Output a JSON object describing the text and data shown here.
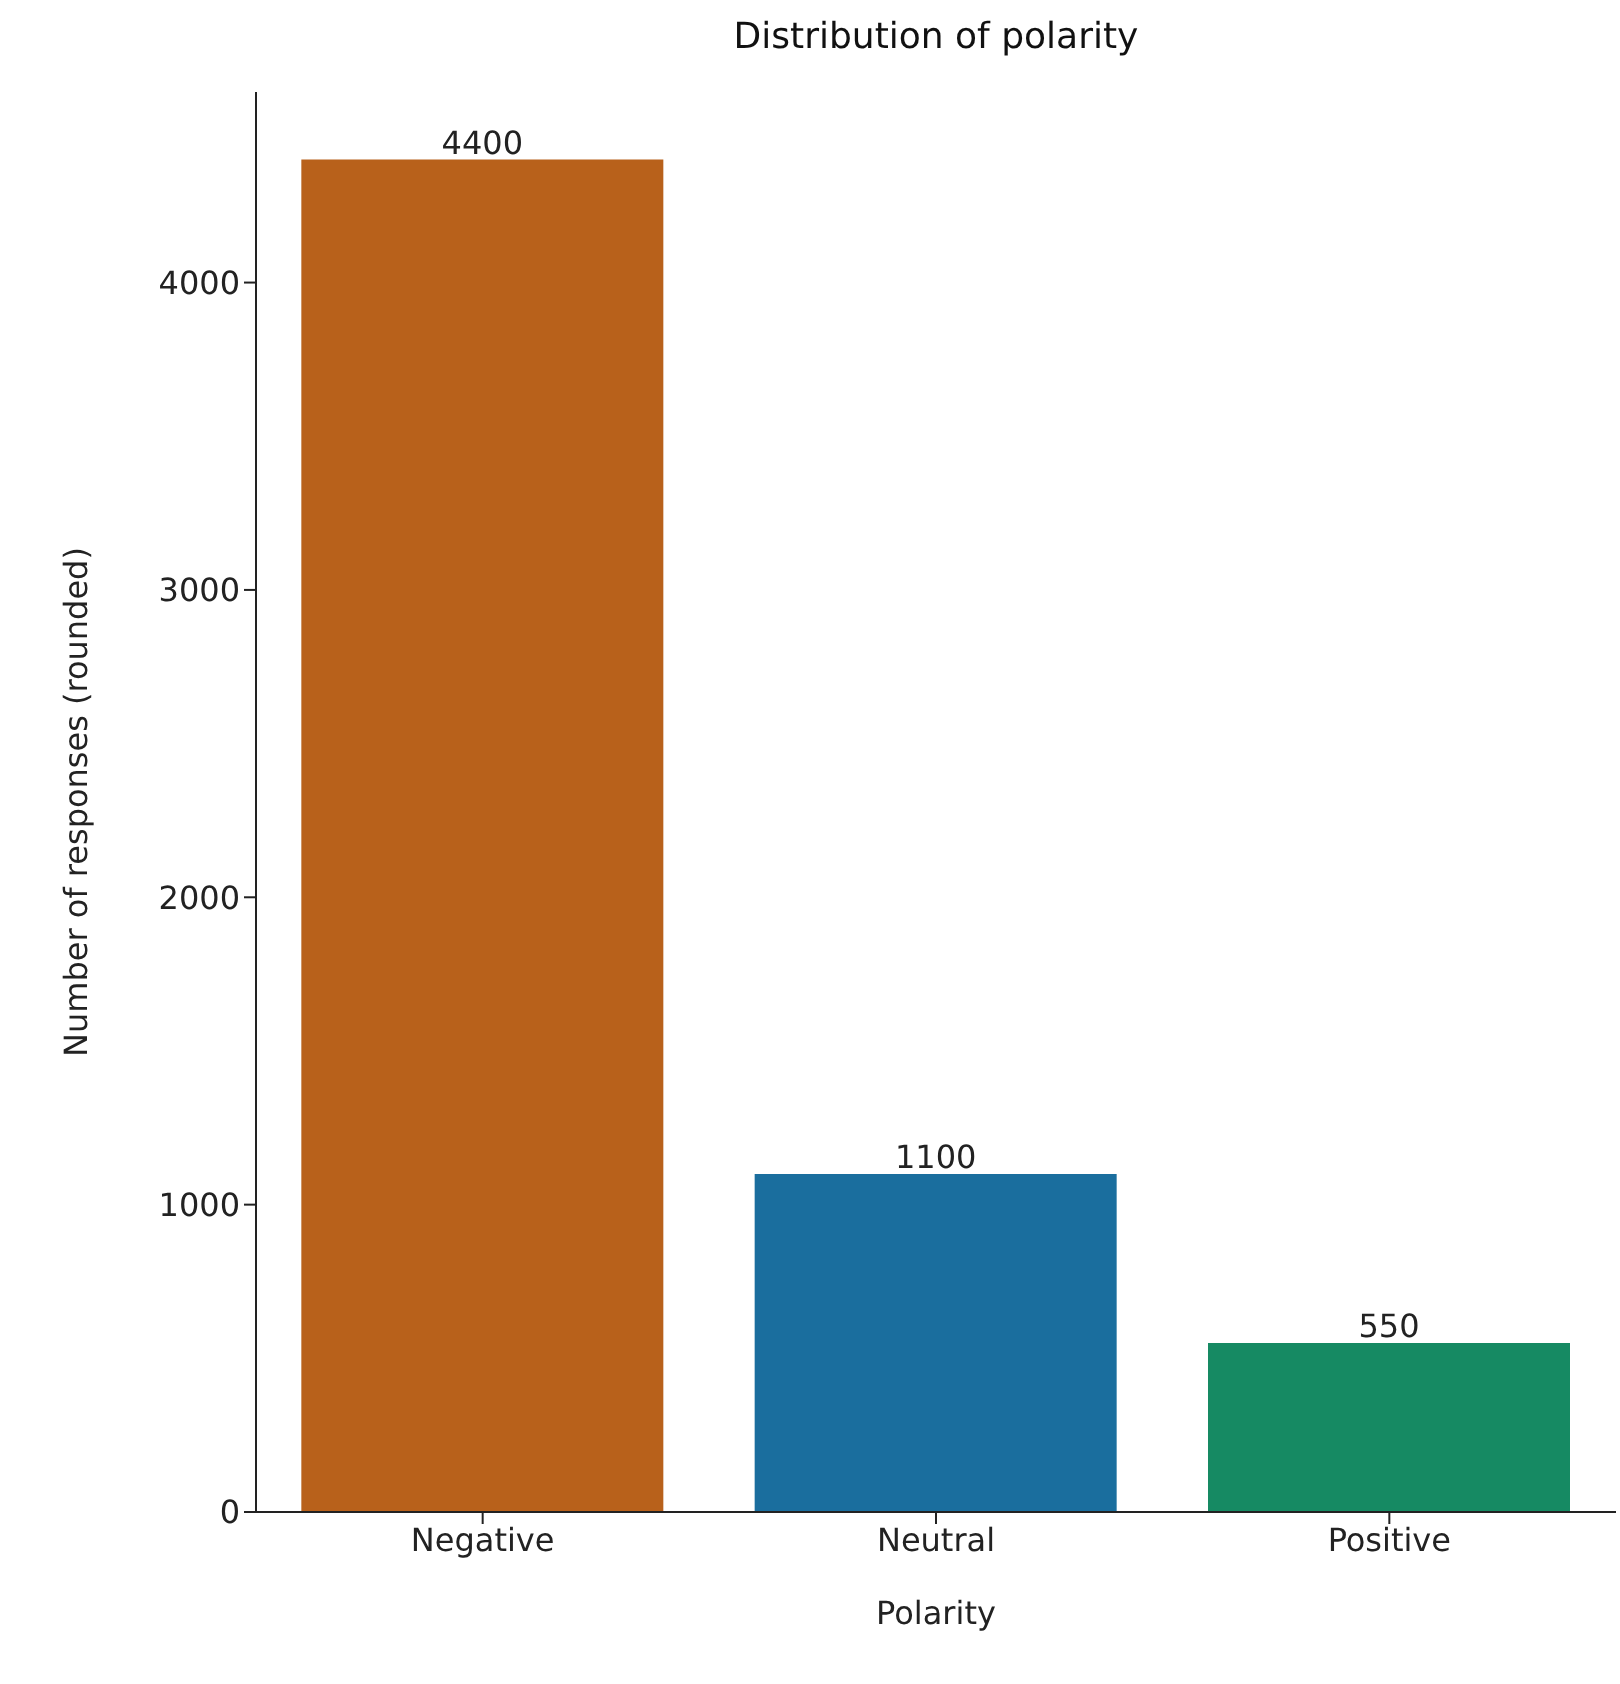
{
  "chart_data": {
    "type": "bar",
    "title": "Distribution of polarity",
    "xlabel": "Polarity",
    "ylabel": "Number of responses (rounded)",
    "categories": [
      "Negative",
      "Neutral",
      "Positive"
    ],
    "values": [
      4400,
      1100,
      550
    ],
    "colors": [
      "#b8611b",
      "#1a6e9e",
      "#168a63"
    ],
    "ylim": [
      0,
      4620
    ],
    "yticks": [
      0,
      1000,
      2000,
      3000,
      4000
    ],
    "grid": false,
    "data_labels": true
  }
}
